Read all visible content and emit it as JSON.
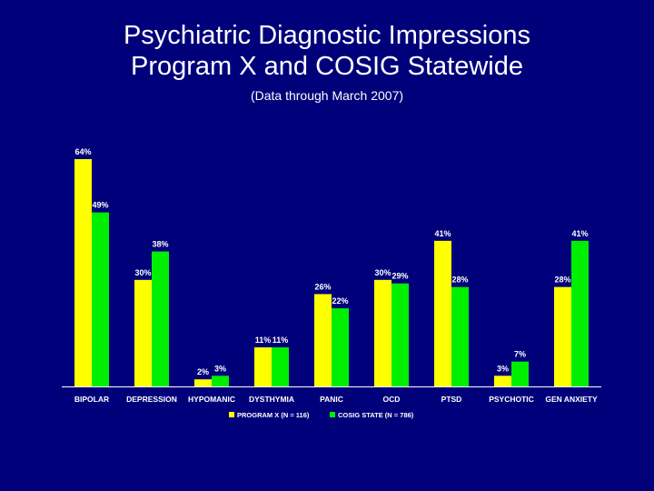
{
  "header": {
    "title_line1": "Psychiatric Diagnostic Impressions",
    "title_line2": "Program X and COSIG Statewide",
    "subtitle": "(Data through March 2007)"
  },
  "colors": {
    "background": "#00007a",
    "program_x": "#ffff00",
    "cosig_state": "#00ee00",
    "text": "#ffffff"
  },
  "chart_data": {
    "type": "bar",
    "categories": [
      "BIPOLAR",
      "DEPRESSION",
      "HYPOMANIC",
      "DYSTHYMIA",
      "PANIC",
      "OCD",
      "PTSD",
      "PSYCHOTIC",
      "GEN ANXIETY"
    ],
    "series": [
      {
        "name": "PROGRAM X (N = 116)",
        "values": [
          64,
          30,
          2,
          11,
          26,
          30,
          41,
          3,
          28
        ],
        "labels": [
          "64%",
          "30%",
          "2%",
          "11%",
          "26%",
          "30%",
          "41%",
          "3%",
          "28%"
        ]
      },
      {
        "name": "COSIG STATE (N = 786)",
        "values": [
          49,
          38,
          3,
          11,
          22,
          29,
          28,
          7,
          41
        ],
        "labels": [
          "49%",
          "38%",
          "3%",
          "11%",
          "22%",
          "29%",
          "28%",
          "7%",
          "41%"
        ]
      }
    ],
    "ylim": [
      0,
      64
    ],
    "grid": false,
    "legend_position": "bottom"
  }
}
